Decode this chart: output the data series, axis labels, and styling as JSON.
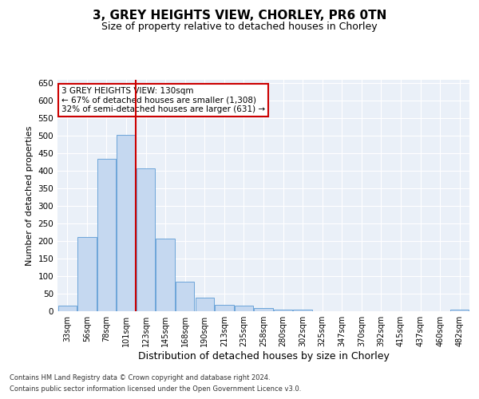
{
  "title": "3, GREY HEIGHTS VIEW, CHORLEY, PR6 0TN",
  "subtitle": "Size of property relative to detached houses in Chorley",
  "xlabel": "Distribution of detached houses by size in Chorley",
  "ylabel": "Number of detached properties",
  "footnote1": "Contains HM Land Registry data © Crown copyright and database right 2024.",
  "footnote2": "Contains public sector information licensed under the Open Government Licence v3.0.",
  "categories": [
    "33sqm",
    "56sqm",
    "78sqm",
    "101sqm",
    "123sqm",
    "145sqm",
    "168sqm",
    "190sqm",
    "213sqm",
    "235sqm",
    "258sqm",
    "280sqm",
    "302sqm",
    "325sqm",
    "347sqm",
    "370sqm",
    "392sqm",
    "415sqm",
    "437sqm",
    "460sqm",
    "482sqm"
  ],
  "values": [
    15,
    212,
    435,
    503,
    408,
    207,
    84,
    38,
    18,
    17,
    10,
    5,
    5,
    1,
    1,
    1,
    1,
    1,
    1,
    1,
    4
  ],
  "bar_color": "#c5d8f0",
  "bar_edge_color": "#5b9bd5",
  "vline_x_index": 4,
  "vline_color": "#cc0000",
  "annotation_text": "3 GREY HEIGHTS VIEW: 130sqm\n← 67% of detached houses are smaller (1,308)\n32% of semi-detached houses are larger (631) →",
  "annotation_box_color": "#ffffff",
  "annotation_box_edge": "#cc0000",
  "ylim": [
    0,
    660
  ],
  "yticks": [
    0,
    50,
    100,
    150,
    200,
    250,
    300,
    350,
    400,
    450,
    500,
    550,
    600,
    650
  ],
  "plot_bg": "#eaf0f8",
  "grid_color": "#ffffff",
  "title_fontsize": 11,
  "subtitle_fontsize": 9,
  "ylabel_fontsize": 8,
  "xlabel_fontsize": 9
}
